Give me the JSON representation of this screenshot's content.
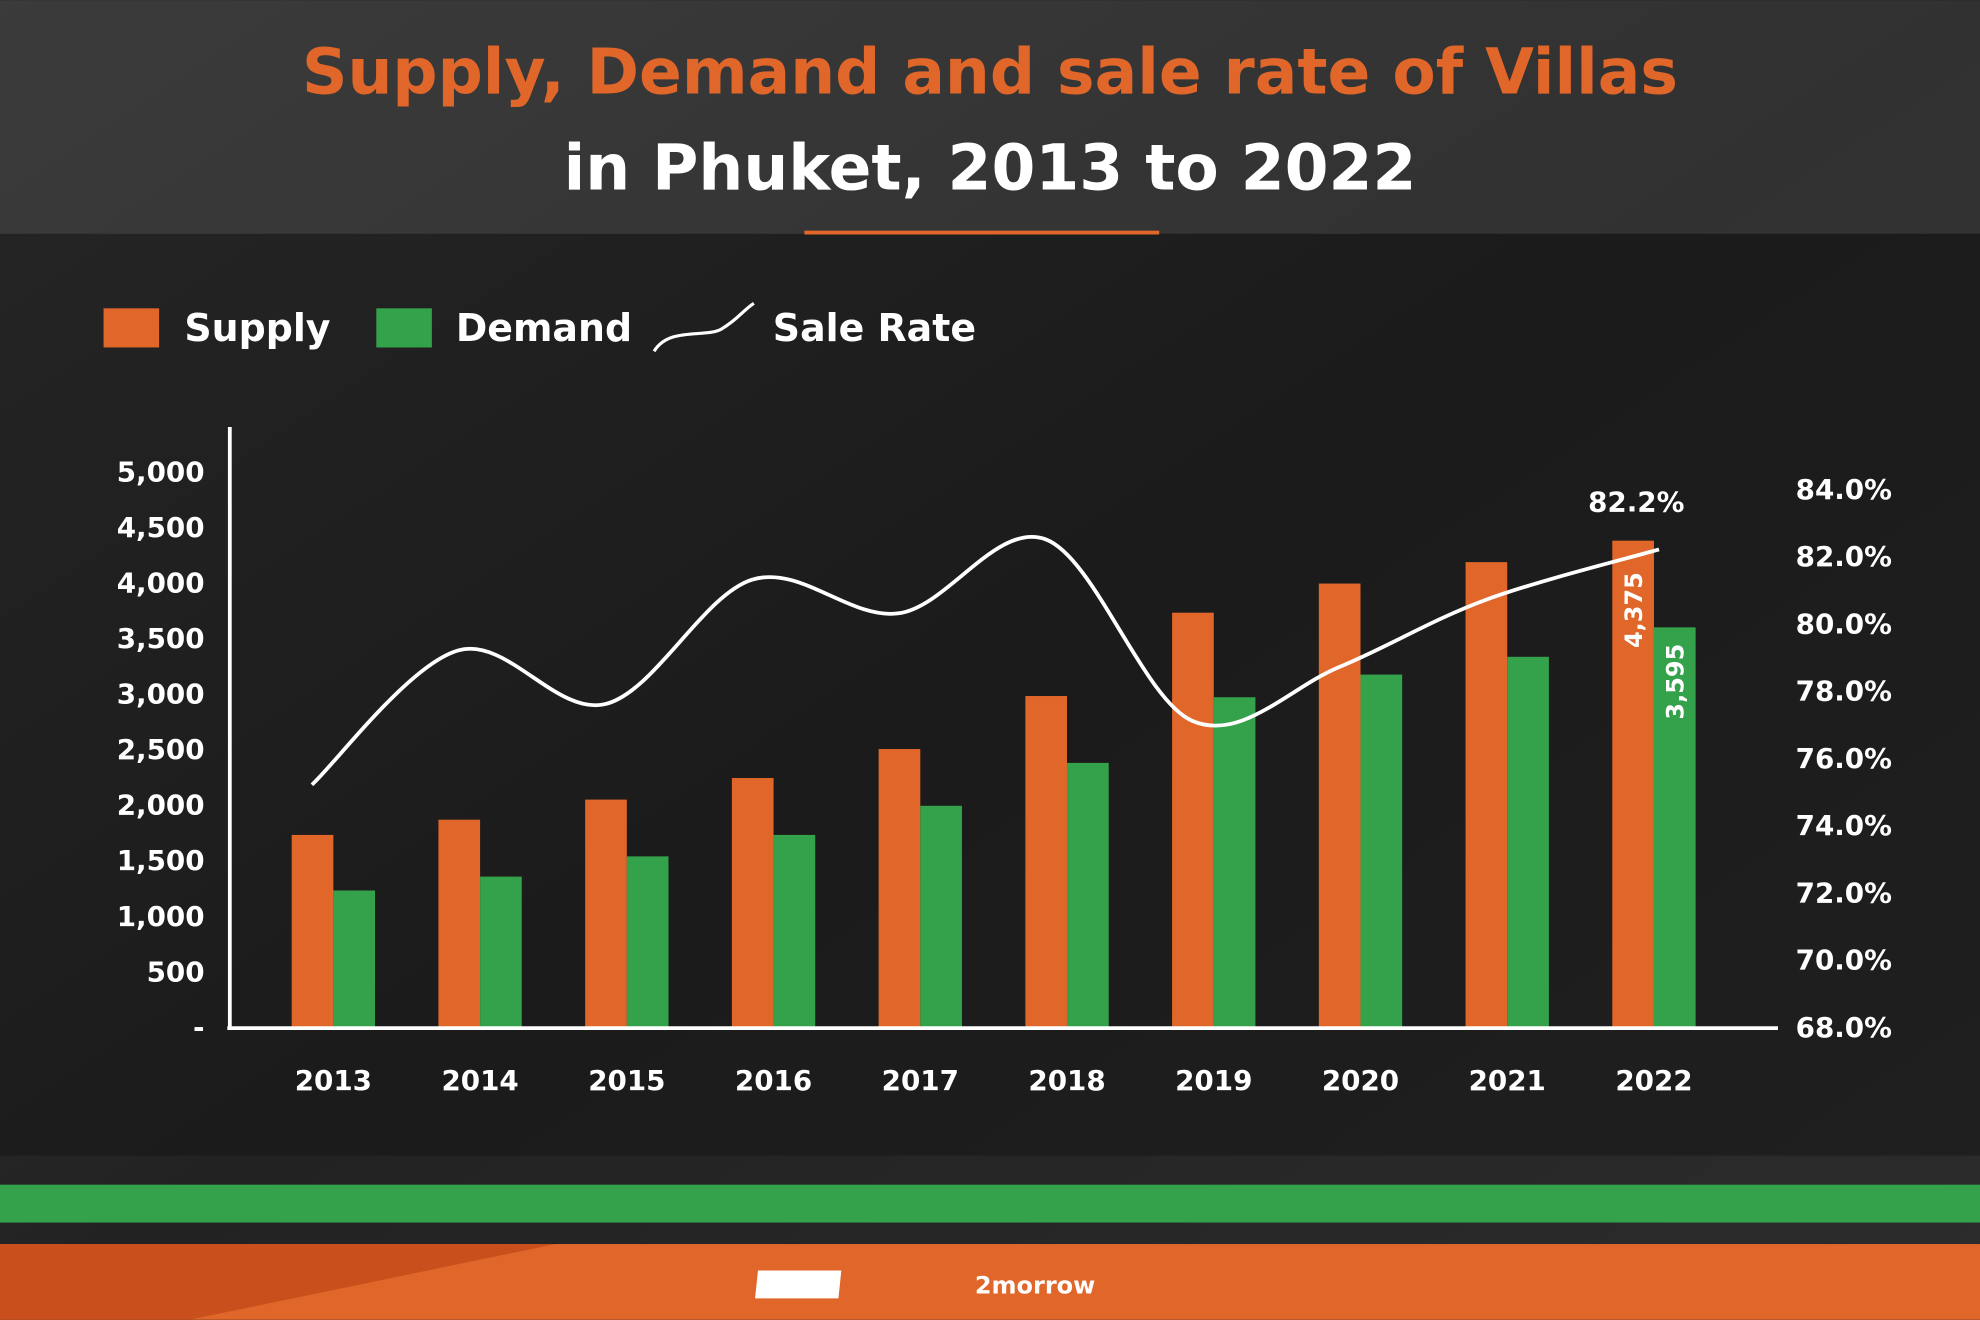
{
  "chart_data": {
    "type": "bar",
    "title_line1": "Supply, Demand and sale rate of Villas",
    "title_line2": "in Phuket, 2013 to 2022",
    "categories": [
      "2013",
      "2014",
      "2015",
      "2016",
      "2017",
      "2018",
      "2019",
      "2020",
      "2021",
      "2022"
    ],
    "series": [
      {
        "name": "Supply",
        "type": "bar",
        "axis": "left",
        "color": "#e0662a",
        "values": [
          1727,
          1864,
          2045,
          2239,
          2500,
          2977,
          3727,
          3989,
          4182,
          4375
        ]
      },
      {
        "name": "Demand",
        "type": "bar",
        "axis": "left",
        "color": "#34a24a",
        "values": [
          1227,
          1352,
          1534,
          1727,
          1989,
          2375,
          2966,
          3170,
          3330,
          3595
        ]
      },
      {
        "name": "Sale Rate",
        "type": "line",
        "axis": "right",
        "color": "#ffffff",
        "values": [
          75.2,
          79.2,
          77.6,
          81.3,
          80.3,
          82.5,
          77.1,
          78.7,
          80.7,
          82.2
        ]
      }
    ],
    "data_labels": {
      "supply_2022": "4,375",
      "demand_2022": "3,595",
      "sale_rate_2022": "82.2%"
    },
    "left_axis": {
      "ylim": [
        0,
        5000
      ],
      "ticks": [
        "-",
        "500",
        "1,000",
        "1,500",
        "2,000",
        "2,500",
        "3,000",
        "3,500",
        "4,000",
        "4,500",
        "5,000"
      ]
    },
    "right_axis": {
      "ylim": [
        68,
        84
      ],
      "ticks": [
        "68.0%",
        "70.0%",
        "72.0%",
        "74.0%",
        "76.0%",
        "78.0%",
        "80.0%",
        "82.0%",
        "84.0%"
      ]
    },
    "legend_placement": "top-left",
    "grid": false
  },
  "brand": {
    "logo_text": "prop2morrow"
  },
  "colors": {
    "title_accent": "#e0662a",
    "green": "#34a24a",
    "orange": "#e0662a"
  }
}
